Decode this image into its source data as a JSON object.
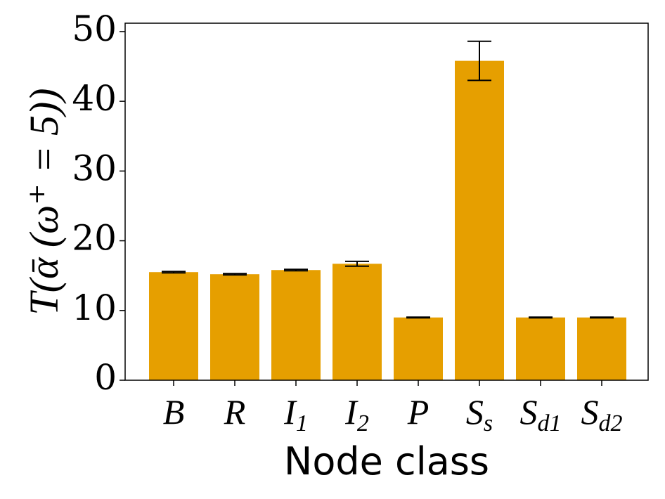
{
  "chart_data": {
    "type": "bar",
    "ylabel": "T(ᾱ (ω⁺ = 5))",
    "xlabel": "Node class",
    "categories": [
      "B",
      "R",
      "I",
      "I",
      "P",
      "S",
      "S",
      "S"
    ],
    "category_subscripts": [
      null,
      null,
      "1",
      "2",
      null,
      "s",
      "d1",
      "d2"
    ],
    "values": [
      15.5,
      15.2,
      15.8,
      16.7,
      9.0,
      45.8,
      9.0,
      9.0
    ],
    "errors": [
      0.1,
      0.1,
      0.1,
      0.35,
      0.05,
      2.8,
      0.05,
      0.05
    ],
    "color": "#e69f00",
    "ylim": [
      0,
      51.2
    ],
    "yticks": [
      0,
      10,
      20,
      30,
      40,
      50
    ]
  }
}
